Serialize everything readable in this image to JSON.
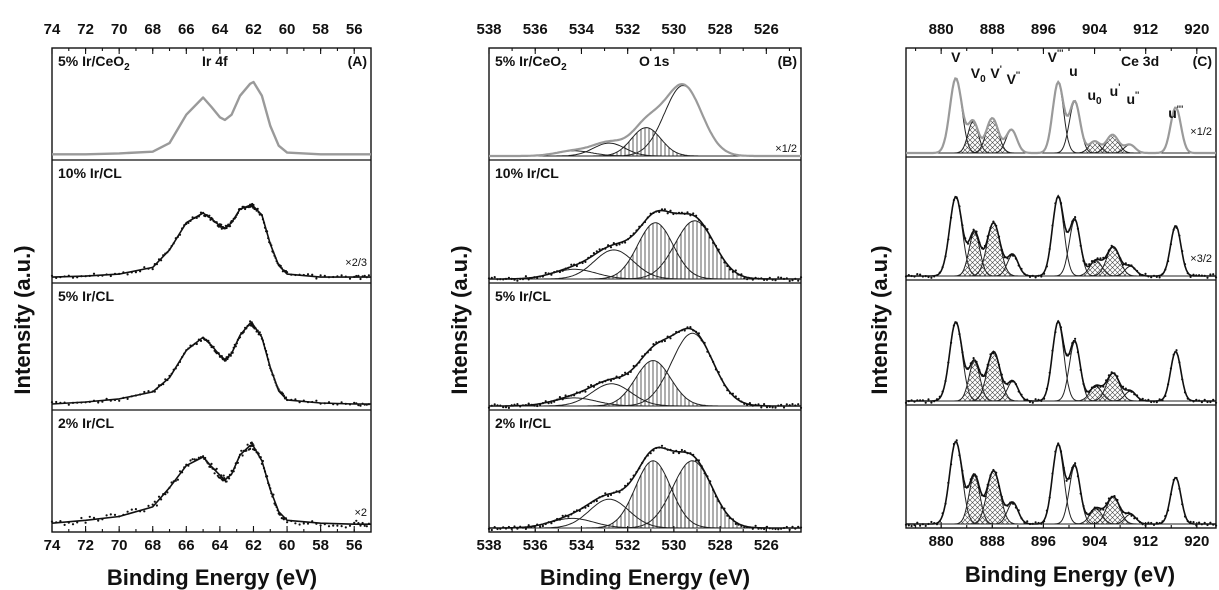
{
  "figure": {
    "y_axis_label": "Intensity (a.u.)",
    "x_axis_label": "Binding Energy (eV)"
  },
  "chart_data": [
    {
      "type": "line",
      "panel": "(A)",
      "region": "Ir 4f",
      "xlabel": "Binding Energy (eV)",
      "ylabel": "Intensity (a.u.)",
      "xlim": [
        74,
        55
      ],
      "x_ticks": [
        74,
        72,
        70,
        68,
        66,
        64,
        62,
        60,
        58,
        56
      ],
      "reversed_x": true,
      "y_ticks_labeled": false,
      "series": [
        {
          "name": "5% Ir/CeO2",
          "scale_note": "",
          "kind": "fit-line",
          "color": "#9a9a9a",
          "x": [
            74,
            72,
            70,
            68,
            67,
            66,
            65,
            64.5,
            64,
            63.7,
            63.3,
            62.8,
            62.2,
            62,
            61.5,
            61,
            60.5,
            60,
            58,
            56,
            55
          ],
          "y": [
            0.02,
            0.02,
            0.03,
            0.05,
            0.15,
            0.48,
            0.68,
            0.57,
            0.45,
            0.42,
            0.48,
            0.7,
            0.84,
            0.86,
            0.7,
            0.35,
            0.12,
            0.04,
            0.02,
            0.02,
            0.02
          ]
        },
        {
          "name": "10% Ir/CL",
          "scale_note": "×2/3",
          "kind": "data-with-fit",
          "x": [
            74,
            72,
            70,
            68,
            67,
            66,
            65,
            64.5,
            64,
            63.7,
            63.3,
            62.8,
            62.2,
            62,
            61.5,
            61,
            60.5,
            60,
            58,
            56,
            55
          ],
          "y": [
            0.02,
            0.03,
            0.05,
            0.12,
            0.3,
            0.58,
            0.68,
            0.62,
            0.55,
            0.52,
            0.58,
            0.72,
            0.76,
            0.75,
            0.66,
            0.36,
            0.14,
            0.05,
            0.02,
            0.02,
            0.02
          ]
        },
        {
          "name": "5% Ir/CL",
          "scale_note": "",
          "kind": "data-with-fit",
          "x": [
            74,
            72,
            70,
            68,
            67,
            66,
            65,
            64.5,
            64,
            63.7,
            63.3,
            62.8,
            62.2,
            62,
            61.5,
            61,
            60.5,
            60,
            58,
            56,
            55
          ],
          "y": [
            0.02,
            0.04,
            0.07,
            0.14,
            0.28,
            0.55,
            0.68,
            0.6,
            0.5,
            0.46,
            0.52,
            0.7,
            0.82,
            0.8,
            0.68,
            0.38,
            0.15,
            0.06,
            0.03,
            0.02,
            0.02
          ]
        },
        {
          "name": "2% Ir/CL",
          "scale_note": "×2",
          "kind": "data-with-fit",
          "x": [
            74,
            72,
            70,
            68,
            67,
            66,
            65,
            64.5,
            64,
            63.7,
            63.3,
            62.8,
            62.2,
            62,
            61.5,
            61,
            60.5,
            60,
            58,
            56,
            55
          ],
          "y": [
            0.05,
            0.08,
            0.12,
            0.22,
            0.42,
            0.65,
            0.74,
            0.64,
            0.55,
            0.5,
            0.56,
            0.76,
            0.86,
            0.85,
            0.7,
            0.4,
            0.17,
            0.08,
            0.05,
            0.04,
            0.04
          ]
        }
      ],
      "annotations": [
        "Ir 4f",
        "(A)"
      ]
    },
    {
      "type": "line",
      "panel": "(B)",
      "region": "O 1s",
      "xlabel": "Binding Energy (eV)",
      "ylabel": "",
      "xlim": [
        538,
        524.5
      ],
      "x_ticks": [
        538,
        536,
        534,
        532,
        530,
        528,
        526
      ],
      "reversed_x": true,
      "y_ticks_labeled": false,
      "series": [
        {
          "name": "5% Ir/CeO2",
          "scale_note": "×1/2",
          "kind": "deconvolved",
          "color": "#9a9a9a",
          "components": [
            {
              "center": 529.6,
              "height": 0.82,
              "fwhm": 1.9,
              "hatch": "none"
            },
            {
              "center": 531.2,
              "height": 0.33,
              "fwhm": 1.5,
              "hatch": "vertical"
            },
            {
              "center": 532.8,
              "height": 0.15,
              "fwhm": 1.6,
              "hatch": "none"
            },
            {
              "center": 534.3,
              "height": 0.06,
              "fwhm": 1.8,
              "hatch": "none"
            }
          ]
        },
        {
          "name": "10% Ir/CL",
          "scale_note": "",
          "kind": "deconvolved",
          "components": [
            {
              "center": 529.1,
              "height": 0.6,
              "fwhm": 2.0,
              "hatch": "vertical"
            },
            {
              "center": 530.8,
              "height": 0.58,
              "fwhm": 1.8,
              "hatch": "vertical"
            },
            {
              "center": 532.6,
              "height": 0.3,
              "fwhm": 2.0,
              "hatch": "none"
            },
            {
              "center": 534.3,
              "height": 0.1,
              "fwhm": 2.2,
              "hatch": "none"
            }
          ]
        },
        {
          "name": "5% Ir/CL",
          "scale_note": "",
          "kind": "deconvolved",
          "components": [
            {
              "center": 529.2,
              "height": 0.72,
              "fwhm": 2.1,
              "hatch": "none"
            },
            {
              "center": 530.9,
              "height": 0.45,
              "fwhm": 1.8,
              "hatch": "vertical"
            },
            {
              "center": 532.7,
              "height": 0.22,
              "fwhm": 2.0,
              "hatch": "none"
            },
            {
              "center": 534.3,
              "height": 0.08,
              "fwhm": 2.2,
              "hatch": "none"
            }
          ]
        },
        {
          "name": "2% Ir/CL",
          "scale_note": "",
          "kind": "deconvolved",
          "components": [
            {
              "center": 529.2,
              "height": 0.7,
              "fwhm": 2.0,
              "hatch": "vertical"
            },
            {
              "center": 530.9,
              "height": 0.7,
              "fwhm": 1.8,
              "hatch": "vertical"
            },
            {
              "center": 532.8,
              "height": 0.3,
              "fwhm": 2.0,
              "hatch": "none"
            },
            {
              "center": 534.4,
              "height": 0.1,
              "fwhm": 2.2,
              "hatch": "none"
            }
          ]
        }
      ],
      "annotations": [
        "O 1s",
        "(B)"
      ]
    },
    {
      "type": "line",
      "panel": "(C)",
      "region": "Ce 3d",
      "xlabel": "Binding Energy (eV)",
      "ylabel": "Intensity (a.u.)",
      "xlim": [
        874.5,
        923
      ],
      "x_ticks": [
        880,
        888,
        896,
        904,
        912,
        920
      ],
      "reversed_x": false,
      "y_ticks_labeled": false,
      "peak_labels": [
        {
          "label": "V",
          "sup": "",
          "sub": "",
          "x": 882.3
        },
        {
          "label": "V",
          "sup": "",
          "sub": "0",
          "x": 885.8
        },
        {
          "label": "V",
          "sup": "'",
          "sub": "",
          "x": 888.6
        },
        {
          "label": "V",
          "sup": "''",
          "sub": "",
          "x": 891.3
        },
        {
          "label": "V",
          "sup": "'''",
          "sub": "",
          "x": 897.9
        },
        {
          "label": "u",
          "sup": "",
          "sub": "",
          "x": 900.7
        },
        {
          "label": "u",
          "sup": "",
          "sub": "0",
          "x": 904.0
        },
        {
          "label": "u",
          "sup": "'",
          "sub": "",
          "x": 907.2
        },
        {
          "label": "u",
          "sup": "''",
          "sub": "",
          "x": 910.0
        },
        {
          "label": "u",
          "sup": "'''",
          "sub": "",
          "x": 916.7
        }
      ],
      "series": [
        {
          "name": "",
          "scale_note": "×1/2",
          "kind": "deconvolved",
          "color": "#9a9a9a",
          "components": [
            {
              "center": 882.3,
              "height": 0.9,
              "fwhm": 2.2,
              "hatch": "none"
            },
            {
              "center": 885.0,
              "height": 0.38,
              "fwhm": 1.9,
              "hatch": "cross"
            },
            {
              "center": 888.0,
              "height": 0.42,
              "fwhm": 2.2,
              "hatch": "cross"
            },
            {
              "center": 891.0,
              "height": 0.28,
              "fwhm": 2.0,
              "hatch": "none"
            },
            {
              "center": 898.3,
              "height": 0.85,
              "fwhm": 2.0,
              "hatch": "none"
            },
            {
              "center": 900.9,
              "height": 0.62,
              "fwhm": 2.0,
              "hatch": "none"
            },
            {
              "center": 904.0,
              "height": 0.14,
              "fwhm": 2.0,
              "hatch": "cross"
            },
            {
              "center": 906.8,
              "height": 0.22,
              "fwhm": 2.2,
              "hatch": "cross"
            },
            {
              "center": 909.5,
              "height": 0.1,
              "fwhm": 2.0,
              "hatch": "none"
            },
            {
              "center": 916.7,
              "height": 0.55,
              "fwhm": 1.9,
              "hatch": "none"
            }
          ]
        },
        {
          "name": "",
          "scale_note": "×3/2",
          "kind": "deconvolved",
          "components": [
            {
              "center": 882.3,
              "height": 0.82,
              "fwhm": 2.3,
              "hatch": "none"
            },
            {
              "center": 885.2,
              "height": 0.45,
              "fwhm": 2.0,
              "hatch": "cross"
            },
            {
              "center": 888.2,
              "height": 0.55,
              "fwhm": 2.4,
              "hatch": "cross"
            },
            {
              "center": 891.2,
              "height": 0.22,
              "fwhm": 2.0,
              "hatch": "none"
            },
            {
              "center": 898.3,
              "height": 0.82,
              "fwhm": 2.1,
              "hatch": "none"
            },
            {
              "center": 900.9,
              "height": 0.58,
              "fwhm": 2.0,
              "hatch": "none"
            },
            {
              "center": 904.2,
              "height": 0.16,
              "fwhm": 2.2,
              "hatch": "cross"
            },
            {
              "center": 906.9,
              "height": 0.3,
              "fwhm": 2.4,
              "hatch": "cross"
            },
            {
              "center": 909.6,
              "height": 0.1,
              "fwhm": 2.0,
              "hatch": "none"
            },
            {
              "center": 916.7,
              "height": 0.52,
              "fwhm": 1.9,
              "hatch": "none"
            }
          ]
        },
        {
          "name": "",
          "scale_note": "",
          "kind": "deconvolved",
          "components": [
            {
              "center": 882.3,
              "height": 0.8,
              "fwhm": 2.3,
              "hatch": "none"
            },
            {
              "center": 885.2,
              "height": 0.4,
              "fwhm": 2.0,
              "hatch": "cross"
            },
            {
              "center": 888.2,
              "height": 0.5,
              "fwhm": 2.4,
              "hatch": "cross"
            },
            {
              "center": 891.2,
              "height": 0.2,
              "fwhm": 2.0,
              "hatch": "none"
            },
            {
              "center": 898.3,
              "height": 0.8,
              "fwhm": 2.1,
              "hatch": "none"
            },
            {
              "center": 900.9,
              "height": 0.6,
              "fwhm": 2.0,
              "hatch": "none"
            },
            {
              "center": 904.2,
              "height": 0.15,
              "fwhm": 2.2,
              "hatch": "cross"
            },
            {
              "center": 906.9,
              "height": 0.28,
              "fwhm": 2.4,
              "hatch": "cross"
            },
            {
              "center": 909.6,
              "height": 0.1,
              "fwhm": 2.0,
              "hatch": "none"
            },
            {
              "center": 916.7,
              "height": 0.5,
              "fwhm": 1.9,
              "hatch": "none"
            }
          ]
        },
        {
          "name": "",
          "scale_note": "",
          "kind": "deconvolved",
          "components": [
            {
              "center": 882.3,
              "height": 0.85,
              "fwhm": 2.3,
              "hatch": "none"
            },
            {
              "center": 885.2,
              "height": 0.5,
              "fwhm": 2.0,
              "hatch": "cross"
            },
            {
              "center": 888.2,
              "height": 0.55,
              "fwhm": 2.4,
              "hatch": "cross"
            },
            {
              "center": 891.2,
              "height": 0.22,
              "fwhm": 2.0,
              "hatch": "none"
            },
            {
              "center": 898.3,
              "height": 0.82,
              "fwhm": 2.1,
              "hatch": "none"
            },
            {
              "center": 900.9,
              "height": 0.6,
              "fwhm": 2.0,
              "hatch": "none"
            },
            {
              "center": 904.2,
              "height": 0.16,
              "fwhm": 2.2,
              "hatch": "cross"
            },
            {
              "center": 906.9,
              "height": 0.28,
              "fwhm": 2.4,
              "hatch": "cross"
            },
            {
              "center": 909.6,
              "height": 0.1,
              "fwhm": 2.0,
              "hatch": "none"
            },
            {
              "center": 916.7,
              "height": 0.48,
              "fwhm": 1.9,
              "hatch": "none"
            }
          ]
        }
      ],
      "annotations": [
        "Ce 3d",
        "(C)"
      ]
    }
  ]
}
